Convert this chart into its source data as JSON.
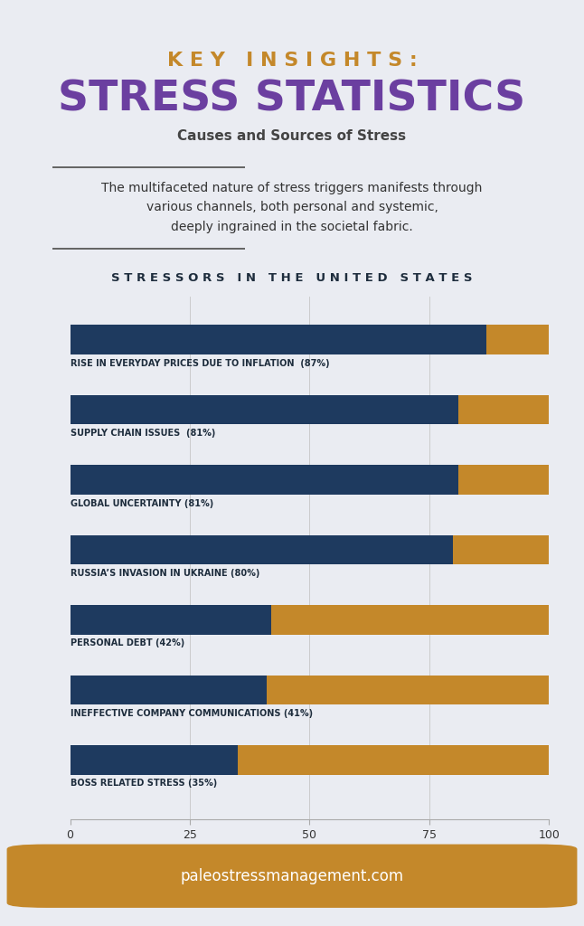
{
  "bg_color": "#eaecf2",
  "title_line1": "K E Y   I N S I G H T S :",
  "title_line2": "STRESS STATISTICS",
  "subtitle": "Causes and Sources of Stress",
  "body_text": "The multifaceted nature of stress triggers manifests through\nvarious channels, both personal and systemic,\ndeeply ingrained in the societal fabric.",
  "section_title": "S T R E S S O R S   I N   T H E   U N I T E D   S T A T E S",
  "categories": [
    "RISE IN EVERYDAY PRICES DUE TO INFLATION  (87%)",
    "SUPPLY CHAIN ISSUES  (81%)",
    "GLOBAL UNCERTAINTY (81%)",
    "RUSSIA’S INVASION IN UKRAINE (80%)",
    "PERSONAL DEBT (42%)",
    "INEFFECTIVE COMPANY COMMUNICATIONS (41%)",
    "BOSS RELATED STRESS (35%)"
  ],
  "values": [
    87,
    81,
    81,
    80,
    42,
    41,
    35
  ],
  "dark_color": "#1e3a5f",
  "gold_color": "#c4882a",
  "title1_color": "#c4882a",
  "title2_color": "#6b3fa0",
  "section_title_color": "#1e2d3d",
  "label_color": "#1e2d3d",
  "footer_text": "paleostressmanagement.com",
  "footer_bg": "#c4882a",
  "footer_text_color": "#ffffff",
  "xlim": [
    0,
    100
  ],
  "xticks": [
    0,
    25,
    50,
    75,
    100
  ]
}
